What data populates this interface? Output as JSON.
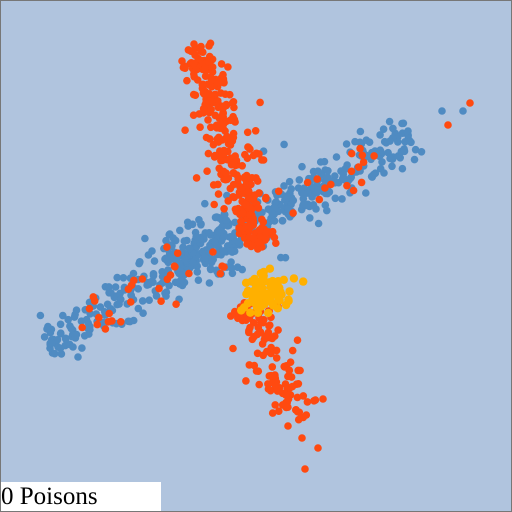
{
  "game": {
    "poison_count": 0,
    "status_text": "0 Poisons"
  },
  "colors": {
    "background": "#b0c4de",
    "blue_dot": "#4f8bc2",
    "red_dot": "#ff4a10",
    "yellow_dot": "#ffb000",
    "status_box": "#ffffff"
  },
  "entities": {
    "blue_dots": "many",
    "red_dots": "many",
    "yellow_cluster": "one"
  }
}
